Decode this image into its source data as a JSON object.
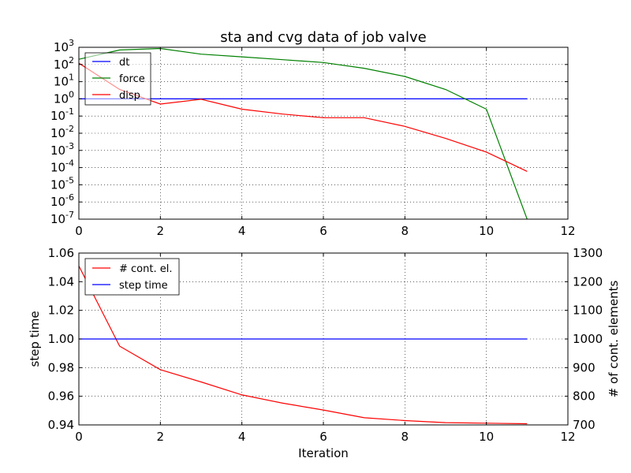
{
  "chart_data": [
    {
      "type": "line",
      "title": "sta and cvg data of job valve",
      "xlabel": "",
      "ylabel": "",
      "y_scale": "log",
      "xlim": [
        0,
        12
      ],
      "ylim": [
        1e-07,
        1000
      ],
      "x_ticks": [
        "0",
        "2",
        "4",
        "6",
        "8",
        "10",
        "12"
      ],
      "y_ticks": [
        {
          "base": "10",
          "exp": "-7",
          "value": 1e-07
        },
        {
          "base": "10",
          "exp": "-6",
          "value": 1e-06
        },
        {
          "base": "10",
          "exp": "-5",
          "value": 1e-05
        },
        {
          "base": "10",
          "exp": "-4",
          "value": 0.0001
        },
        {
          "base": "10",
          "exp": "-3",
          "value": 0.001
        },
        {
          "base": "10",
          "exp": "-2",
          "value": 0.01
        },
        {
          "base": "10",
          "exp": "-1",
          "value": 0.1
        },
        {
          "base": "10",
          "exp": "0",
          "value": 1
        },
        {
          "base": "10",
          "exp": "1",
          "value": 10
        },
        {
          "base": "10",
          "exp": "2",
          "value": 100
        },
        {
          "base": "10",
          "exp": "3",
          "value": 1000
        }
      ],
      "grid": true,
      "legend_position": "top-left",
      "series": [
        {
          "name": "dt",
          "color": "#0000ff",
          "x": [
            0,
            1,
            2,
            3,
            4,
            5,
            6,
            7,
            8,
            9,
            10,
            11
          ],
          "values": [
            1,
            1,
            1,
            1,
            1,
            1,
            1,
            1,
            1,
            1,
            1,
            1
          ]
        },
        {
          "name": "force",
          "color": "#008000",
          "x": [
            0,
            1,
            2,
            3,
            4,
            5,
            6,
            7,
            8,
            9,
            10,
            11
          ],
          "values": [
            200,
            700,
            850,
            400,
            280,
            190,
            130,
            60,
            20,
            3.5,
            0.25,
            1e-07
          ]
        },
        {
          "name": "disp",
          "color": "#ff0000",
          "x": [
            0,
            1,
            2,
            3,
            4,
            5,
            6,
            7,
            8,
            9,
            10,
            11
          ],
          "values": [
            120,
            3.5,
            0.5,
            0.95,
            0.25,
            0.13,
            0.08,
            0.08,
            0.025,
            0.005,
            0.0008,
            6e-05
          ]
        }
      ]
    },
    {
      "type": "line",
      "title": "",
      "xlabel": "Iteration",
      "ylabel": "step time",
      "y2label": "# of cont. elements",
      "xlim": [
        0,
        12
      ],
      "ylim": [
        0.94,
        1.06
      ],
      "y2lim": [
        700,
        1300
      ],
      "x_ticks": [
        "0",
        "2",
        "4",
        "6",
        "8",
        "10",
        "12"
      ],
      "y_ticks": [
        "0.94",
        "0.96",
        "0.98",
        "1.00",
        "1.02",
        "1.04",
        "1.06"
      ],
      "y2_ticks": [
        "700",
        "800",
        "900",
        "1000",
        "1100",
        "1200",
        "1300"
      ],
      "grid": true,
      "legend_position": "top-left",
      "series": [
        {
          "name": "# cont. el.",
          "color": "#ff0000",
          "axis": "y2",
          "x": [
            0,
            1,
            2,
            3,
            4,
            5,
            6,
            7,
            8,
            9,
            10,
            11
          ],
          "values": [
            1255,
            975,
            893,
            850,
            805,
            776,
            752,
            725,
            715,
            708,
            706,
            704
          ]
        },
        {
          "name": "step time",
          "color": "#0000ff",
          "axis": "y",
          "x": [
            0,
            1,
            2,
            3,
            4,
            5,
            6,
            7,
            8,
            9,
            10,
            11
          ],
          "values": [
            1,
            1,
            1,
            1,
            1,
            1,
            1,
            1,
            1,
            1,
            1,
            1
          ]
        }
      ]
    }
  ]
}
